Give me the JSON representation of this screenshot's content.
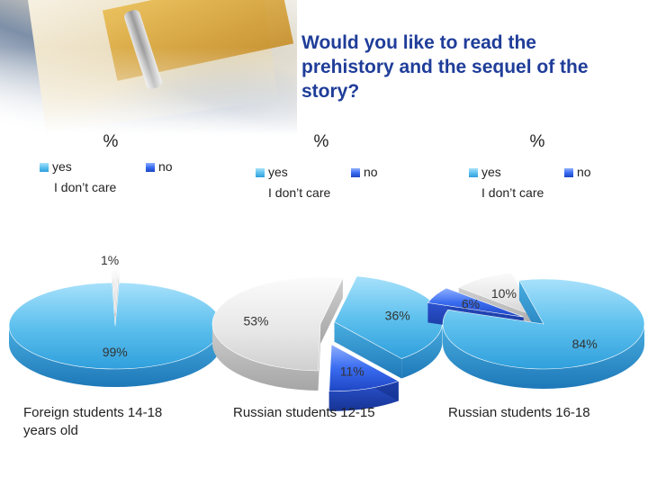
{
  "title": "Would you like to read the prehistory and the sequel of the story?",
  "colors": {
    "yes": "#5fc1ee",
    "no": "#2f5ce0",
    "idc": "#e6e6e6",
    "title": "#1f3d99",
    "text": "#222222"
  },
  "legend": {
    "yes": "yes",
    "no": "no",
    "idc": "I don’t care"
  },
  "chart_data": [
    {
      "type": "pie",
      "title": "%",
      "caption_lines": [
        "Foreign students 14-18",
        "years old"
      ],
      "slices": [
        {
          "label": "yes",
          "value": 99,
          "text": "99%"
        },
        {
          "label": "no",
          "value": 0,
          "text": ""
        },
        {
          "label": "I don’t care",
          "value": 1,
          "text": "1%"
        }
      ]
    },
    {
      "type": "pie",
      "title": "%",
      "caption_lines": [
        "Russian students 12-15"
      ],
      "slices": [
        {
          "label": "yes",
          "value": 36,
          "text": "36%"
        },
        {
          "label": "no",
          "value": 11,
          "text": "11%"
        },
        {
          "label": "I don’t care",
          "value": 53,
          "text": "53%"
        }
      ]
    },
    {
      "type": "pie",
      "title": "%",
      "caption_lines": [
        "Russian students 16-18"
      ],
      "slices": [
        {
          "label": "yes",
          "value": 84,
          "text": "84%"
        },
        {
          "label": "no",
          "value": 6,
          "text": "6%"
        },
        {
          "label": "I don’t care",
          "value": 10,
          "text": "10%"
        }
      ]
    }
  ]
}
